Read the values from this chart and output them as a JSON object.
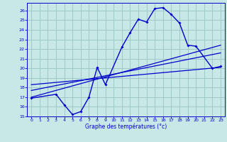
{
  "xlabel": "Graphe des températures (°c)",
  "bg_color": "#c8e8e8",
  "grid_color": "#a0c8c8",
  "line_color": "#0000cc",
  "xlim": [
    -0.5,
    23.5
  ],
  "ylim": [
    15,
    26.8
  ],
  "yticks": [
    15,
    16,
    17,
    18,
    19,
    20,
    21,
    22,
    23,
    24,
    25,
    26
  ],
  "xticks": [
    0,
    1,
    2,
    3,
    4,
    5,
    6,
    7,
    8,
    9,
    10,
    11,
    12,
    13,
    14,
    15,
    16,
    17,
    18,
    19,
    20,
    21,
    22,
    23
  ],
  "curve_x": [
    0,
    3,
    4,
    5,
    6,
    7,
    8,
    9,
    11,
    12,
    13,
    14,
    15,
    16,
    17,
    18,
    19,
    20,
    22,
    23
  ],
  "curve_y": [
    16.9,
    17.3,
    16.2,
    15.2,
    15.5,
    17.0,
    20.1,
    18.3,
    22.2,
    23.7,
    25.1,
    24.8,
    26.2,
    26.3,
    25.6,
    24.7,
    22.4,
    22.3,
    20.0,
    20.2
  ],
  "line1_x": [
    0,
    23
  ],
  "line1_y": [
    17.0,
    22.4
  ],
  "line2_x": [
    0,
    23
  ],
  "line2_y": [
    17.7,
    21.6
  ],
  "line3_x": [
    0,
    23
  ],
  "line3_y": [
    18.3,
    20.1
  ]
}
